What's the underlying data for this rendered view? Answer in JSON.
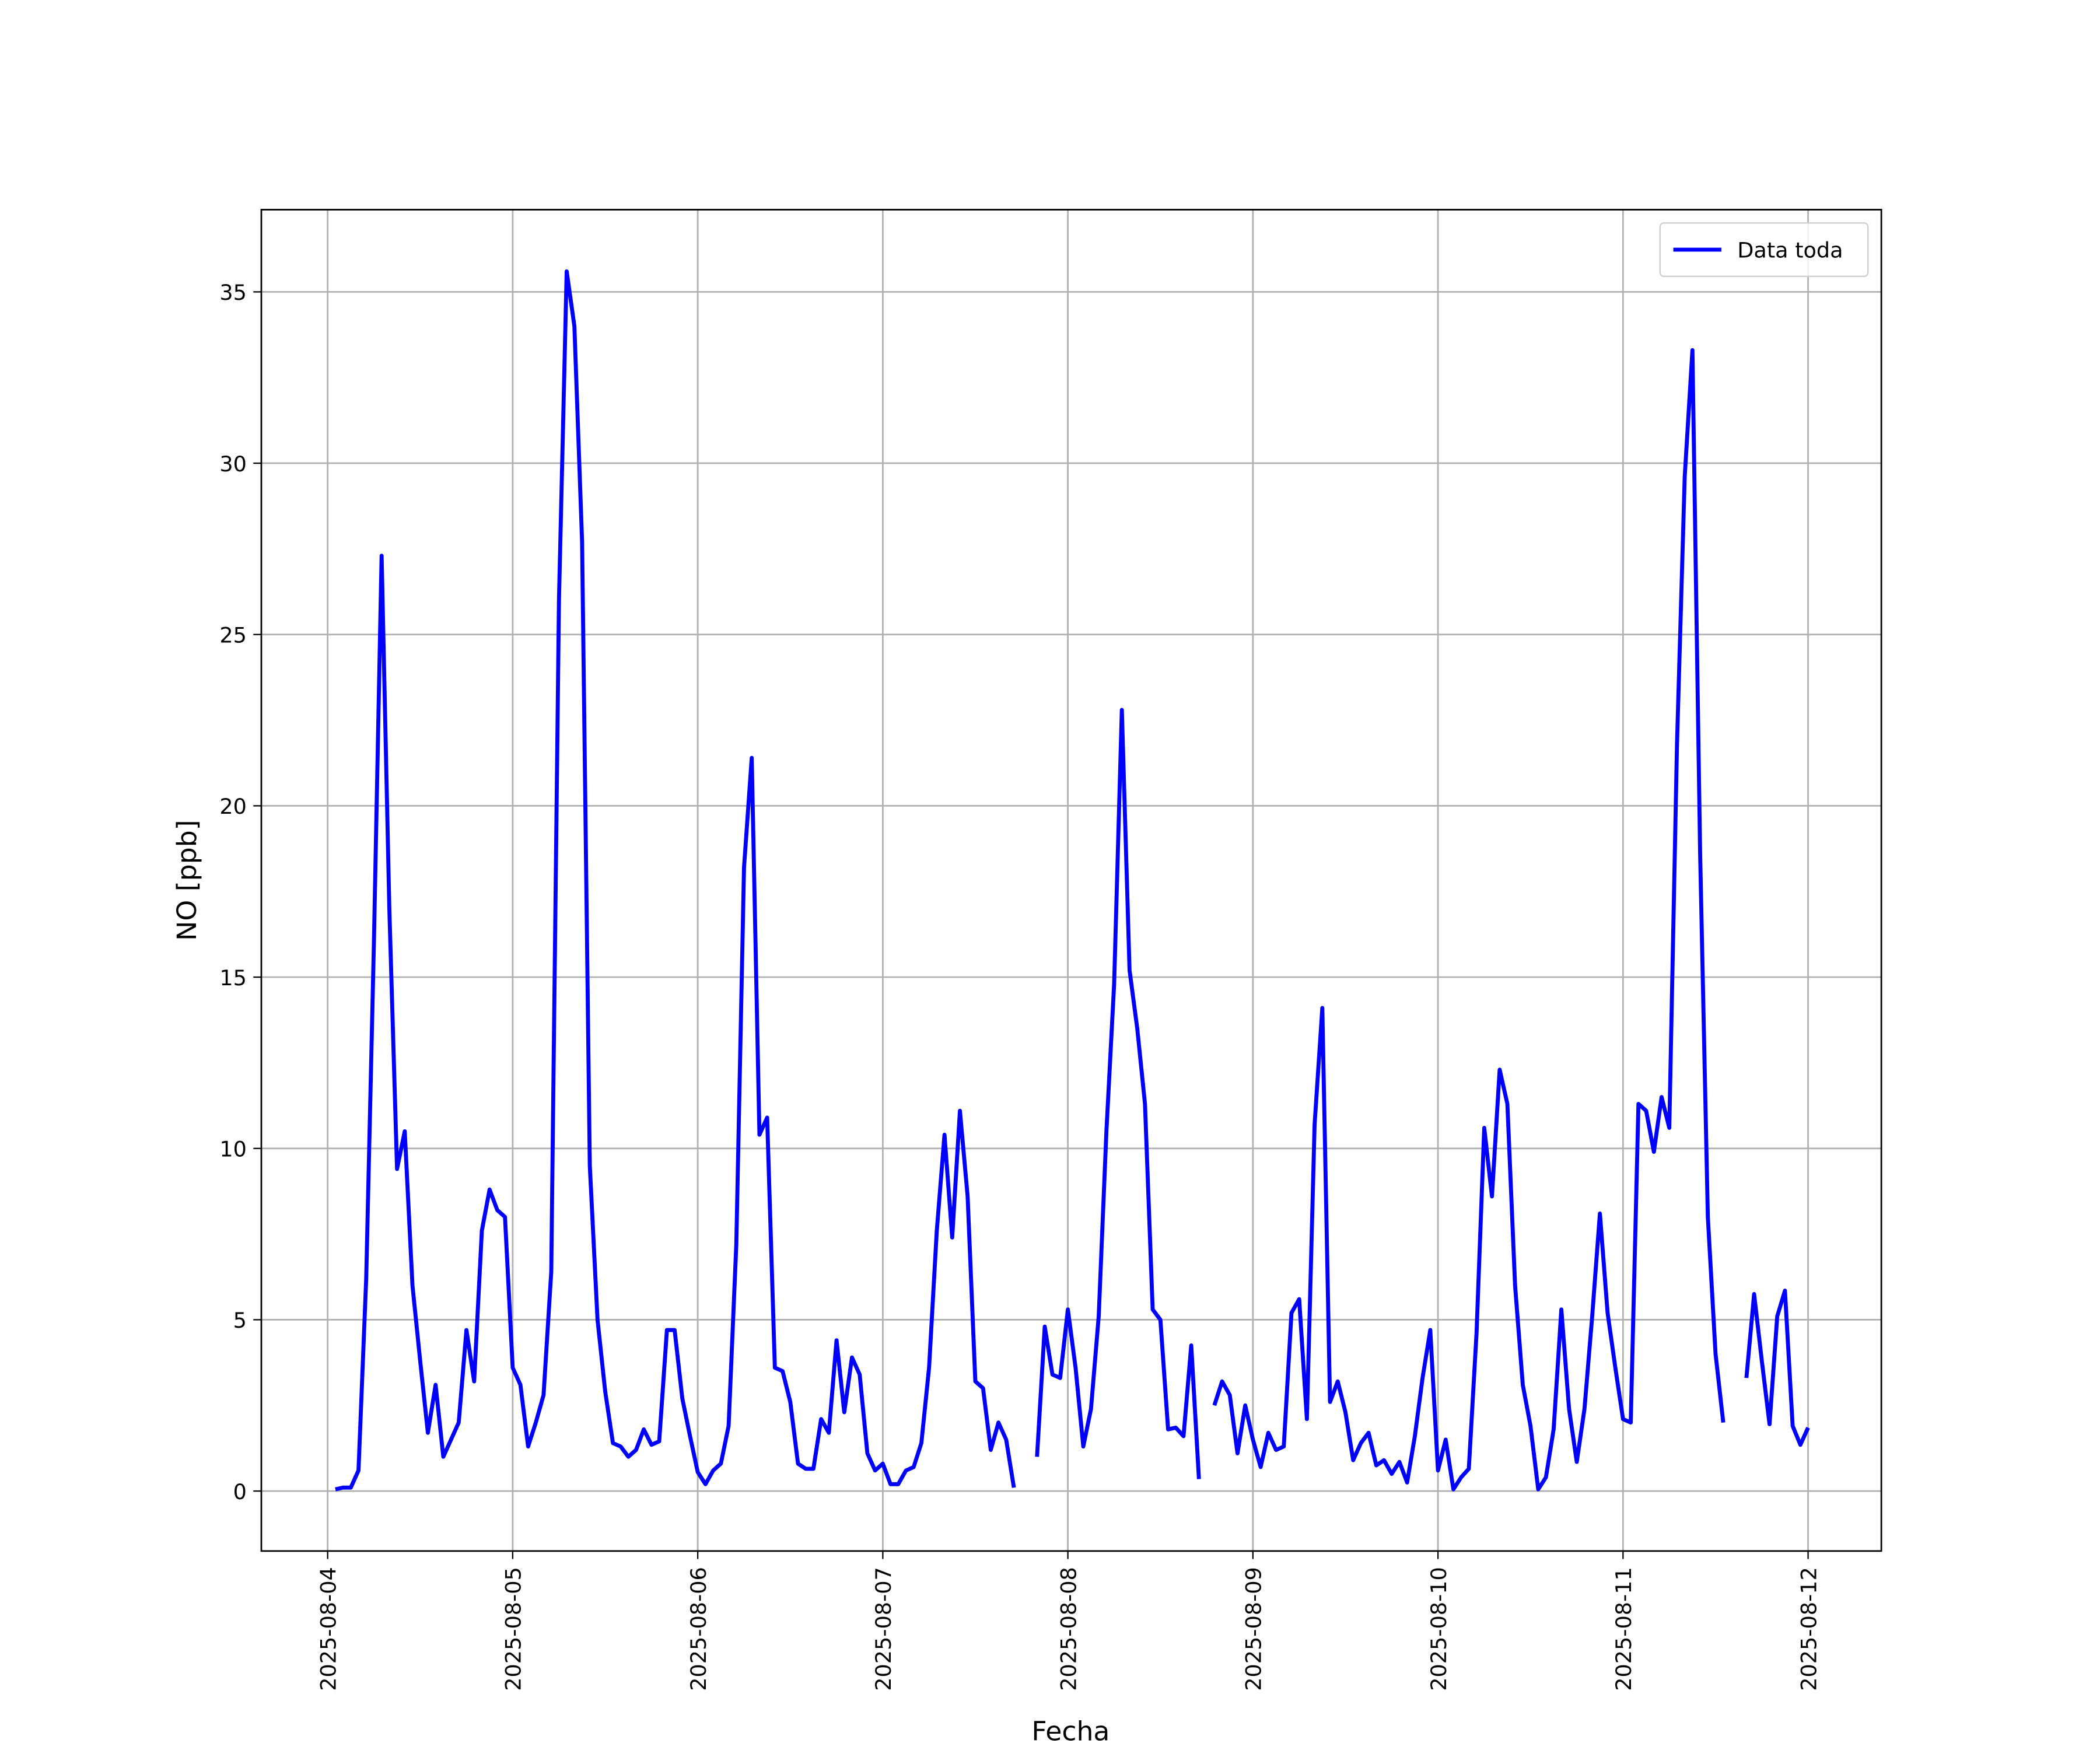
{
  "chart_data": {
    "type": "line",
    "xlabel": "Fecha",
    "ylabel": "NO [ppb]",
    "x": [
      1,
      2,
      3,
      4,
      5,
      6,
      7,
      8,
      9,
      10,
      11,
      12,
      13,
      14,
      15,
      16,
      17,
      18,
      19,
      20,
      21,
      22,
      23,
      24,
      25,
      26,
      27,
      28,
      29,
      30,
      31,
      32,
      33,
      34,
      35,
      36,
      37,
      38,
      39,
      40,
      41,
      42,
      43,
      44,
      45,
      46,
      47,
      48,
      49,
      50,
      51,
      52,
      53,
      54,
      55,
      56,
      57,
      58,
      59,
      60,
      61,
      62,
      63,
      64,
      65,
      66,
      67,
      68,
      69,
      70,
      71,
      72,
      73,
      74,
      75,
      76,
      77,
      78,
      79,
      80,
      81,
      82,
      83,
      84,
      85,
      86,
      87,
      88,
      89,
      90,
      91,
      92,
      93,
      94,
      95,
      96,
      97,
      98,
      99,
      100,
      101,
      102,
      103,
      104,
      105,
      106,
      107,
      108,
      109,
      110,
      111,
      112,
      113,
      114,
      115,
      116,
      117,
      118,
      119,
      120,
      121,
      122,
      123,
      124,
      125,
      126,
      127,
      128,
      129,
      130,
      131,
      132,
      133,
      134,
      135,
      136,
      137,
      138,
      139,
      140,
      141,
      142,
      143,
      144,
      145,
      146,
      147,
      148,
      149,
      150,
      151,
      152,
      153,
      154,
      155,
      156,
      157,
      158,
      159,
      160,
      161,
      162,
      163,
      164,
      165,
      166,
      167,
      168,
      169,
      170,
      171,
      172,
      173,
      174,
      175,
      176,
      177,
      178,
      179,
      180,
      181,
      182,
      183,
      184,
      185,
      186,
      187,
      188,
      189,
      190,
      191,
      192
    ],
    "series": [
      {
        "name": "Data toda",
        "color": "#0000ff",
        "values": [
          0.05,
          0.1,
          0.1,
          0.6,
          6.2,
          16,
          27.3,
          17,
          9.4,
          10.5,
          6,
          3.8,
          1.7,
          3.1,
          1.0,
          1.5,
          2.0,
          4.7,
          3.2,
          7.6,
          8.8,
          8.2,
          8.0,
          3.6,
          3.1,
          1.3,
          2.0,
          2.8,
          6.4,
          26,
          35.6,
          34,
          27.7,
          9.5,
          5.0,
          2.9,
          1.4,
          1.3,
          1.0,
          1.2,
          1.8,
          1.35,
          1.45,
          4.7,
          4.7,
          2.7,
          1.6,
          0.55,
          0.2,
          0.6,
          0.8,
          1.9,
          7.2,
          18.2,
          21.4,
          10.4,
          10.9,
          3.6,
          3.5,
          2.6,
          0.8,
          0.65,
          0.65,
          2.1,
          1.7,
          4.4,
          2.3,
          3.9,
          3.4,
          1.1,
          0.6,
          0.8,
          0.2,
          0.2,
          0.6,
          0.7,
          1.4,
          3.6,
          7.6,
          10.4,
          7.4,
          11.1,
          8.6,
          3.2,
          3.0,
          1.2,
          2.0,
          1.5,
          0.1,
          null,
          null,
          1.0,
          4.8,
          3.4,
          3.3,
          5.3,
          3.6,
          1.3,
          2.4,
          5.1,
          10.5,
          14.8,
          22.8,
          15.2,
          13.5,
          11.3,
          5.3,
          5.0,
          1.8,
          1.85,
          1.6,
          4.25,
          0.35,
          null,
          2.5,
          3.2,
          2.8,
          1.1,
          2.5,
          1.5,
          0.7,
          1.7,
          1.2,
          1.3,
          5.2,
          5.6,
          2.1,
          10.7,
          14.1,
          2.6,
          3.2,
          2.3,
          0.9,
          1.4,
          1.7,
          0.75,
          0.9,
          0.5,
          0.85,
          0.25,
          1.6,
          3.3,
          4.7,
          0.6,
          1.5,
          0.05,
          0.4,
          0.65,
          4.6,
          10.6,
          8.6,
          12.3,
          11.3,
          6.0,
          3.1,
          1.9,
          0.05,
          0.4,
          1.8,
          5.3,
          2.4,
          0.85,
          2.4,
          5.1,
          8.1,
          5.2,
          3.6,
          2.1,
          2.0,
          11.3,
          11.1,
          9.9,
          11.5,
          10.6,
          21.8,
          29.6,
          33.3,
          18.6,
          8.0,
          4.0,
          2.0,
          null,
          null,
          3.3,
          5.75,
          3.8,
          1.95,
          5.1,
          5.85,
          1.9,
          1.35,
          1.85
        ]
      }
    ],
    "xlim": [
      -8.6,
      201.5
    ],
    "xticks": [
      {
        "value": 0,
        "label": "2025-08-04"
      },
      {
        "value": 24,
        "label": "2025-08-05"
      },
      {
        "value": 48,
        "label": "2025-08-06"
      },
      {
        "value": 72,
        "label": "2025-08-07"
      },
      {
        "value": 96,
        "label": "2025-08-08"
      },
      {
        "value": 120,
        "label": "2025-08-09"
      },
      {
        "value": 144,
        "label": "2025-08-10"
      },
      {
        "value": 168,
        "label": "2025-08-11"
      },
      {
        "value": 192,
        "label": "2025-08-12"
      }
    ],
    "ylim": [
      -1.75,
      37.4
    ],
    "yticks": [
      0,
      5,
      10,
      15,
      20,
      25,
      30,
      35
    ],
    "grid": true,
    "legend": "upper right"
  }
}
